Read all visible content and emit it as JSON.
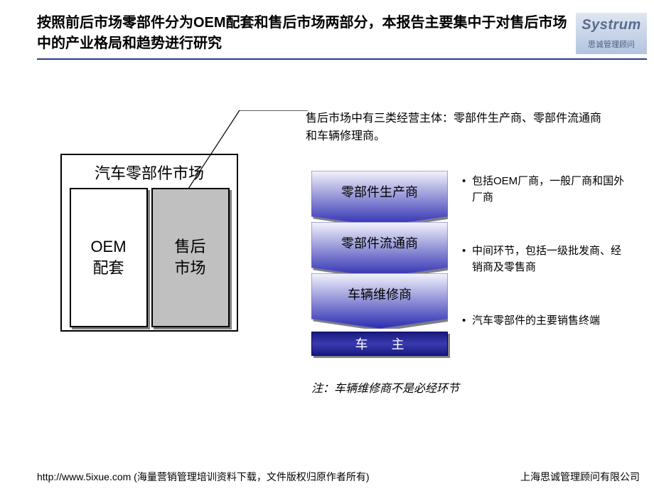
{
  "title": "按照前后市场零部件分为OEM配套和售后市场两部分，本报告主要集中于对售后市场中的产业格局和趋势进行研究",
  "logo": {
    "main": "Systrum",
    "sub": "思诚管理顾问"
  },
  "colors": {
    "rule": "#2a3a8a",
    "chev_dark": "#2b2bb0",
    "chev_light": "#f4f4fc",
    "owner_grad_a": "#1a1a80",
    "owner_grad_b": "#3a3ab0",
    "shadow": "#808080",
    "aftermarket_fill": "#c0c0c0"
  },
  "left": {
    "box_title": "汽车零部件市场",
    "oem_label": "OEM\n配套",
    "after_label": "售后\n市场"
  },
  "right_heading": "售后市场中有三类经营主体：零部件生产商、零部件流通商和车辆修理商。",
  "chevrons": [
    {
      "label": "零部件生产商",
      "bullet": "包括OEM厂商，一般厂商和国外厂商"
    },
    {
      "label": "零部件流通商",
      "bullet": "中间环节，包括一级批发商、经销商及零售商"
    },
    {
      "label": "车辆维修商",
      "bullet": "汽车零部件的主要销售终端"
    }
  ],
  "owner_label": "车 主",
  "note": "注：车辆维修商不是必经环节",
  "footer": {
    "left": "http://www.5ixue.com (海量营销管理培训资料下载，文件版权归原作者所有)",
    "right": "上海思诚管理顾问有限公司"
  }
}
